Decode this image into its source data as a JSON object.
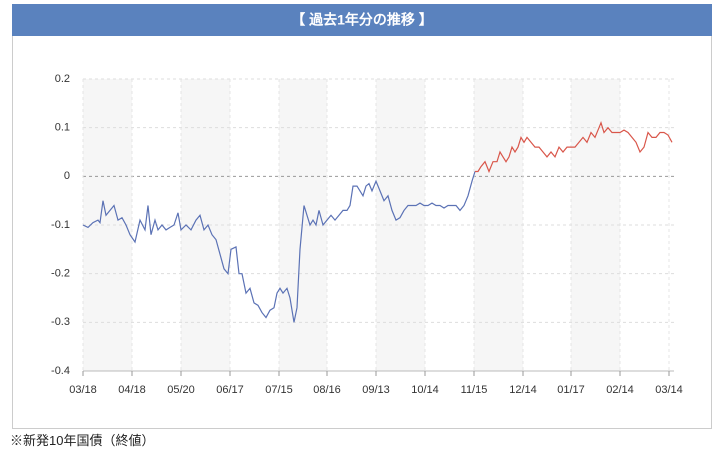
{
  "chart_data": {
    "type": "line",
    "title": "【 過去1年分の推移 】",
    "note": "※新発10年国債（終値）",
    "xlim": [
      0,
      591
    ],
    "xticks": [
      {
        "value": 0,
        "label": "03/18"
      },
      {
        "value": 49,
        "label": "04/18"
      },
      {
        "value": 98,
        "label": "05/20"
      },
      {
        "value": 147,
        "label": "06/17"
      },
      {
        "value": 196,
        "label": "07/15"
      },
      {
        "value": 244,
        "label": "08/16"
      },
      {
        "value": 293,
        "label": "09/13"
      },
      {
        "value": 342,
        "label": "10/14"
      },
      {
        "value": 391,
        "label": "11/15"
      },
      {
        "value": 440,
        "label": "12/14"
      },
      {
        "value": 488,
        "label": "01/17"
      },
      {
        "value": 537,
        "label": "02/14"
      },
      {
        "value": 586,
        "label": "03/14"
      }
    ],
    "ylim": [
      -0.4,
      0.2
    ],
    "yticks": [
      -0.4,
      -0.3,
      -0.2,
      -0.1,
      0,
      0.1,
      0.2
    ],
    "grid": true,
    "series": [
      {
        "color": "#5b72b5",
        "x": [
          0,
          5,
          10,
          15,
          17,
          20,
          23,
          27,
          31,
          35,
          39,
          43,
          47,
          52,
          57,
          62,
          65,
          68,
          72,
          75,
          79,
          83,
          87,
          91,
          95,
          98,
          103,
          108,
          113,
          117,
          121,
          125,
          129,
          133,
          137,
          141,
          145,
          148,
          153,
          156,
          159,
          163,
          167,
          171,
          175,
          179,
          183,
          187,
          191,
          194,
          197,
          200,
          204,
          207,
          211,
          214,
          217,
          221,
          224,
          227,
          230,
          233,
          236,
          240,
          244,
          248,
          252,
          256,
          260,
          264,
          267,
          270,
          274,
          277,
          280,
          283,
          286,
          289,
          293,
          297,
          301,
          305,
          309,
          313,
          317,
          321,
          325,
          329,
          333,
          337,
          341,
          345,
          349,
          353,
          357,
          361,
          365,
          369,
          373,
          377,
          381,
          385,
          389,
          392
        ],
        "values": [
          -0.1,
          -0.105,
          -0.095,
          -0.09,
          -0.095,
          -0.05,
          -0.08,
          -0.07,
          -0.06,
          -0.09,
          -0.085,
          -0.1,
          -0.12,
          -0.135,
          -0.09,
          -0.11,
          -0.06,
          -0.12,
          -0.09,
          -0.11,
          -0.1,
          -0.11,
          -0.105,
          -0.1,
          -0.075,
          -0.11,
          -0.1,
          -0.11,
          -0.09,
          -0.08,
          -0.11,
          -0.1,
          -0.12,
          -0.13,
          -0.16,
          -0.19,
          -0.2,
          -0.15,
          -0.145,
          -0.2,
          -0.2,
          -0.24,
          -0.23,
          -0.26,
          -0.265,
          -0.28,
          -0.29,
          -0.275,
          -0.27,
          -0.24,
          -0.23,
          -0.24,
          -0.23,
          -0.25,
          -0.3,
          -0.27,
          -0.15,
          -0.06,
          -0.08,
          -0.1,
          -0.09,
          -0.1,
          -0.07,
          -0.1,
          -0.09,
          -0.08,
          -0.09,
          -0.08,
          -0.07,
          -0.07,
          -0.06,
          -0.02,
          -0.02,
          -0.03,
          -0.04,
          -0.02,
          -0.015,
          -0.03,
          -0.01,
          -0.03,
          -0.05,
          -0.04,
          -0.07,
          -0.09,
          -0.085,
          -0.07,
          -0.06,
          -0.06,
          -0.06,
          -0.055,
          -0.06,
          -0.06,
          -0.055,
          -0.06,
          -0.06,
          -0.065,
          -0.06,
          -0.06,
          -0.06,
          -0.07,
          -0.06,
          -0.04,
          -0.01,
          0.01
        ]
      },
      {
        "color": "#d9564a",
        "x": [
          392,
          395,
          398,
          402,
          406,
          410,
          414,
          417,
          420,
          423,
          426,
          429,
          432,
          435,
          438,
          441,
          444,
          448,
          452,
          456,
          460,
          464,
          468,
          472,
          476,
          480,
          484,
          488,
          492,
          496,
          500,
          504,
          508,
          512,
          516,
          518,
          521,
          525,
          529,
          533,
          537,
          541,
          545,
          549,
          553,
          557,
          561,
          565,
          569,
          573,
          577,
          581,
          585,
          589
        ],
        "values": [
          0.01,
          0.01,
          0.02,
          0.03,
          0.01,
          0.03,
          0.03,
          0.05,
          0.04,
          0.03,
          0.04,
          0.06,
          0.05,
          0.06,
          0.08,
          0.07,
          0.08,
          0.07,
          0.06,
          0.06,
          0.05,
          0.04,
          0.05,
          0.04,
          0.06,
          0.05,
          0.06,
          0.06,
          0.06,
          0.07,
          0.08,
          0.07,
          0.09,
          0.08,
          0.1,
          0.11,
          0.09,
          0.1,
          0.09,
          0.09,
          0.09,
          0.095,
          0.09,
          0.08,
          0.07,
          0.05,
          0.06,
          0.09,
          0.08,
          0.08,
          0.09,
          0.09,
          0.085,
          0.07
        ]
      }
    ]
  }
}
